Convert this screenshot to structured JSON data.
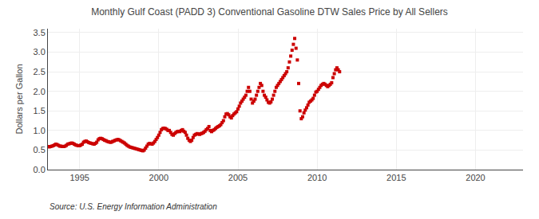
{
  "chart_data": {
    "type": "scatter",
    "title": "Monthly Gulf Coast (PADD 3) Conventional Gasoline DTW Sales Price by All Sellers",
    "ylabel": "Dollars per Gallon",
    "annotations": [
      "Source: U.S. Energy Information Administration"
    ],
    "color": "#cc0000",
    "marker": "square",
    "grid": true,
    "xlim": [
      1993.0,
      2023.0
    ],
    "ylim": [
      0.0,
      3.6
    ],
    "xticks": [
      1995,
      2000,
      2005,
      2010,
      2015,
      2020
    ],
    "yticks": [
      {
        "value": 0.0,
        "label": "0.0"
      },
      0.5,
      {
        "value": 1.0,
        "label": "1.0"
      },
      1.5,
      {
        "value": 2.0,
        "label": "2.0"
      },
      2.5,
      {
        "value": 3.0,
        "label": "3.0"
      },
      3.5
    ],
    "x": [
      1993.0,
      1993.083,
      1993.167,
      1993.25,
      1993.333,
      1993.417,
      1993.5,
      1993.583,
      1993.667,
      1993.75,
      1993.833,
      1993.917,
      1994.0,
      1994.083,
      1994.167,
      1994.25,
      1994.333,
      1994.417,
      1994.5,
      1994.583,
      1994.667,
      1994.75,
      1994.833,
      1994.917,
      1995.0,
      1995.083,
      1995.167,
      1995.25,
      1995.333,
      1995.417,
      1995.5,
      1995.583,
      1995.667,
      1995.75,
      1995.833,
      1995.917,
      1996.0,
      1996.083,
      1996.167,
      1996.25,
      1996.333,
      1996.417,
      1996.5,
      1996.583,
      1996.667,
      1996.75,
      1996.833,
      1996.917,
      1997.0,
      1997.083,
      1997.167,
      1997.25,
      1997.333,
      1997.417,
      1997.5,
      1997.583,
      1997.667,
      1997.75,
      1997.833,
      1997.917,
      1998.0,
      1998.083,
      1998.167,
      1998.25,
      1998.333,
      1998.417,
      1998.5,
      1998.583,
      1998.667,
      1998.75,
      1998.833,
      1998.917,
      1999.0,
      1999.083,
      1999.167,
      1999.25,
      1999.333,
      1999.417,
      1999.5,
      1999.583,
      1999.667,
      1999.75,
      1999.833,
      1999.917,
      2000.0,
      2000.083,
      2000.167,
      2000.25,
      2000.333,
      2000.417,
      2000.5,
      2000.583,
      2000.667,
      2000.75,
      2000.833,
      2000.917,
      2001.0,
      2001.083,
      2001.167,
      2001.25,
      2001.333,
      2001.417,
      2001.5,
      2001.583,
      2001.667,
      2001.75,
      2001.833,
      2001.917,
      2002.0,
      2002.083,
      2002.167,
      2002.25,
      2002.333,
      2002.417,
      2002.5,
      2002.583,
      2002.667,
      2002.75,
      2002.833,
      2002.917,
      2003.0,
      2003.083,
      2003.167,
      2003.25,
      2003.333,
      2003.417,
      2003.5,
      2003.583,
      2003.667,
      2003.75,
      2003.833,
      2003.917,
      2004.0,
      2004.083,
      2004.167,
      2004.25,
      2004.333,
      2004.417,
      2004.5,
      2004.583,
      2004.667,
      2004.75,
      2004.833,
      2004.917,
      2005.0,
      2005.083,
      2005.167,
      2005.25,
      2005.333,
      2005.417,
      2005.5,
      2005.583,
      2005.667,
      2005.75,
      2005.833,
      2005.917,
      2006.0,
      2006.083,
      2006.167,
      2006.25,
      2006.333,
      2006.417,
      2006.5,
      2006.583,
      2006.667,
      2006.75,
      2006.833,
      2006.917,
      2007.0,
      2007.083,
      2007.167,
      2007.25,
      2007.333,
      2007.417,
      2007.5,
      2007.583,
      2007.667,
      2007.75,
      2007.833,
      2007.917,
      2008.0,
      2008.083,
      2008.167,
      2008.25,
      2008.333,
      2008.417,
      2008.5,
      2008.583,
      2008.667,
      2008.75,
      2008.833,
      2008.917,
      2009.0,
      2009.083,
      2009.167,
      2009.25,
      2009.333,
      2009.417,
      2009.5,
      2009.583,
      2009.667,
      2009.75,
      2009.833,
      2009.917,
      2010.0,
      2010.083,
      2010.167,
      2010.25,
      2010.333,
      2010.417,
      2010.5,
      2010.583,
      2010.667,
      2010.75,
      2010.833,
      2010.917,
      2011.0,
      2011.083,
      2011.167,
      2011.25,
      2011.333,
      2011.417
    ],
    "values": [
      0.59,
      0.58,
      0.59,
      0.6,
      0.61,
      0.63,
      0.65,
      0.64,
      0.62,
      0.6,
      0.6,
      0.59,
      0.59,
      0.6,
      0.62,
      0.65,
      0.66,
      0.67,
      0.68,
      0.67,
      0.65,
      0.63,
      0.62,
      0.61,
      0.61,
      0.63,
      0.65,
      0.7,
      0.72,
      0.73,
      0.71,
      0.69,
      0.68,
      0.67,
      0.66,
      0.65,
      0.67,
      0.7,
      0.76,
      0.79,
      0.8,
      0.79,
      0.77,
      0.75,
      0.74,
      0.72,
      0.71,
      0.7,
      0.7,
      0.72,
      0.73,
      0.75,
      0.76,
      0.77,
      0.76,
      0.74,
      0.72,
      0.7,
      0.68,
      0.65,
      0.62,
      0.6,
      0.58,
      0.57,
      0.56,
      0.55,
      0.54,
      0.53,
      0.52,
      0.51,
      0.5,
      0.49,
      0.48,
      0.5,
      0.55,
      0.6,
      0.65,
      0.67,
      0.66,
      0.65,
      0.68,
      0.72,
      0.77,
      0.82,
      0.88,
      0.95,
      1.02,
      1.05,
      1.06,
      1.05,
      1.03,
      1.0,
      1.0,
      0.95,
      0.9,
      0.88,
      0.92,
      0.95,
      0.97,
      0.98,
      0.97,
      1.0,
      1.02,
      0.98,
      0.95,
      0.88,
      0.8,
      0.75,
      0.72,
      0.75,
      0.82,
      0.88,
      0.9,
      0.92,
      0.91,
      0.9,
      0.92,
      0.93,
      0.95,
      0.98,
      1.02,
      1.05,
      1.1,
      1.0,
      0.97,
      1.0,
      1.02,
      1.05,
      1.08,
      1.1,
      1.12,
      1.15,
      1.2,
      1.25,
      1.35,
      1.42,
      1.43,
      1.4,
      1.35,
      1.32,
      1.38,
      1.42,
      1.45,
      1.48,
      1.55,
      1.62,
      1.7,
      1.75,
      1.8,
      1.85,
      1.9,
      2.0,
      2.1,
      2.0,
      1.8,
      1.7,
      1.75,
      1.8,
      1.9,
      2.0,
      2.1,
      2.2,
      2.15,
      2.0,
      1.9,
      1.85,
      1.78,
      1.72,
      1.7,
      1.73,
      1.8,
      1.9,
      2.0,
      2.1,
      2.15,
      2.2,
      2.25,
      2.3,
      2.35,
      2.4,
      2.45,
      2.5,
      2.6,
      2.75,
      2.9,
      3.05,
      3.2,
      3.35,
      3.1,
      2.8,
      2.2,
      1.5,
      1.3,
      1.35,
      1.45,
      1.52,
      1.58,
      1.65,
      1.72,
      1.75,
      1.78,
      1.82,
      1.9,
      1.98,
      2.0,
      2.05,
      2.1,
      2.15,
      2.18,
      2.2,
      2.18,
      2.15,
      2.12,
      2.15,
      2.18,
      2.22,
      2.35,
      2.45,
      2.55,
      2.6,
      2.55,
      2.5
    ]
  }
}
